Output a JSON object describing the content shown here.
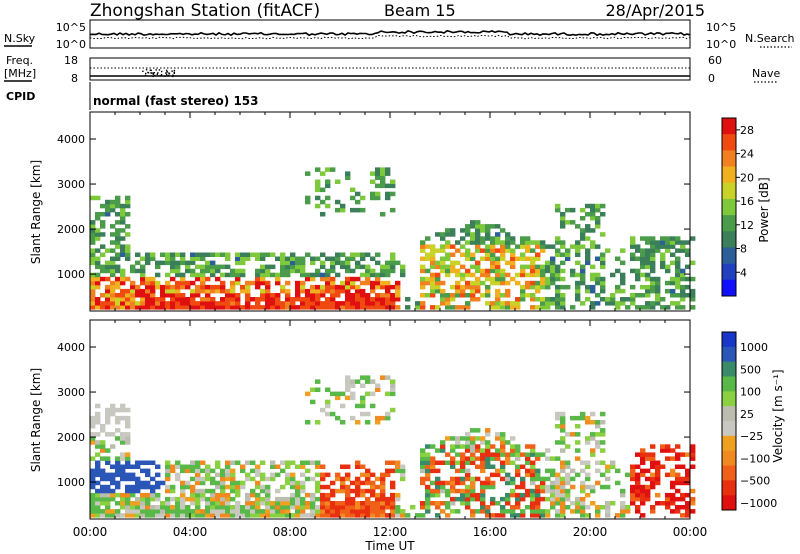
{
  "header": {
    "station": "Zhongshan Station (fitACF)",
    "beam": "Beam 15",
    "date": "28/Apr/2015"
  },
  "top_panels": {
    "nsky_label": "N.Sky",
    "nsearch_label": "N.Search",
    "freq_label_1": "Freq.",
    "freq_label_2": "[MHz]",
    "nave_label": "Nave",
    "cpid_label": "CPID",
    "cpid_value": "normal (fast stereo) 153",
    "noise_ticks": [
      "10^5",
      "10^0"
    ],
    "freq_ticks": [
      "18",
      "8"
    ],
    "nave_ticks": [
      "60",
      "0"
    ]
  },
  "chart_data": [
    {
      "type": "heatmap",
      "name": "power",
      "ylabel": "Slant Range [km]",
      "xlabel": "Time UT",
      "x_ticks": [
        "00:00",
        "04:00",
        "08:00",
        "12:00",
        "16:00",
        "20:00",
        "00:00"
      ],
      "y_ticks": [
        "1000",
        "2000",
        "3000",
        "4000"
      ],
      "xlim_hours": [
        0,
        24
      ],
      "ylim_km": [
        180,
        4600
      ],
      "colorbar": {
        "label": "Power [dB]",
        "ticks": [
          "4",
          "8",
          "12",
          "16",
          "20",
          "24",
          "28"
        ],
        "range": [
          0,
          30
        ],
        "colors": [
          "#1010ff",
          "#2040c0",
          "#2c5e9a",
          "#3b7e5a",
          "#4a9b4a",
          "#7ec83c",
          "#c8d228",
          "#f0b020",
          "#f08020",
          "#f04a10",
          "#e01010"
        ]
      }
    },
    {
      "type": "heatmap",
      "name": "velocity",
      "ylabel": "Slant Range [km]",
      "xlabel": "Time UT",
      "x_ticks": [
        "00:00",
        "04:00",
        "08:00",
        "12:00",
        "16:00",
        "20:00",
        "00:00"
      ],
      "y_ticks": [
        "1000",
        "2000",
        "3000",
        "4000"
      ],
      "xlim_hours": [
        0,
        24
      ],
      "ylim_km": [
        180,
        4600
      ],
      "colorbar": {
        "label": "Velocity [m s⁻¹]",
        "ticks": [
          "1000",
          "500",
          "100",
          "25",
          "−25",
          "−100",
          "−500",
          "−1000"
        ],
        "range": [
          -1000,
          1000
        ],
        "colors": [
          "#1836c8",
          "#2a56b8",
          "#3a8a6a",
          "#58b848",
          "#8ad040",
          "#bcbcb0",
          "#c8c8c0",
          "#f0a020",
          "#f08a20",
          "#f06018",
          "#e83010",
          "#e01010"
        ]
      }
    }
  ]
}
